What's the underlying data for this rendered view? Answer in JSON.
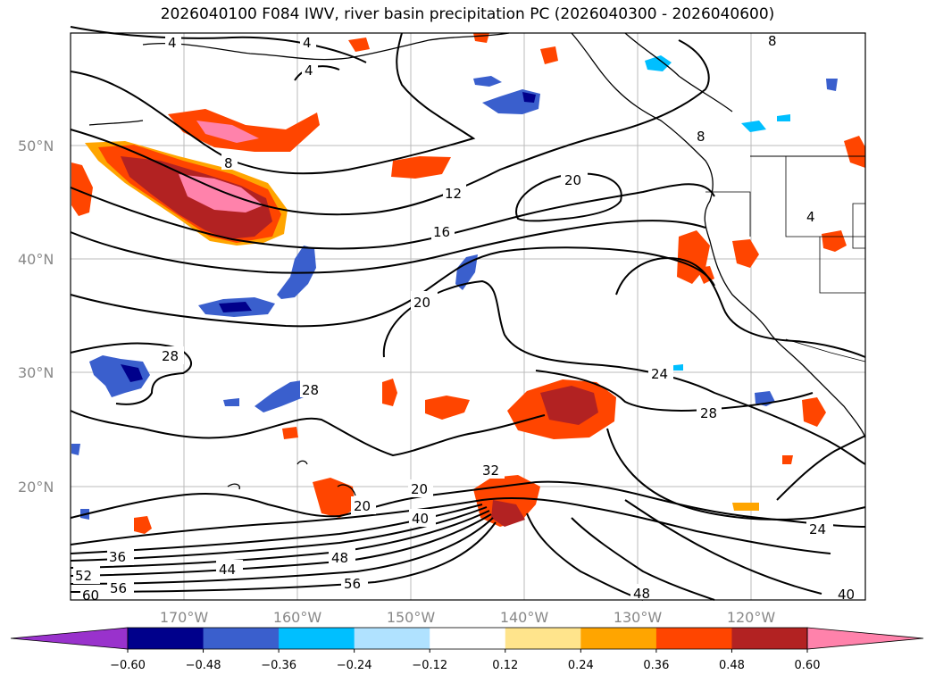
{
  "title": "2026040100 F084 IWV, river basin precipitation PC (2026040300 - 2026040600)",
  "map": {
    "lat_ticks": [
      "50°N",
      "40°N",
      "30°N",
      "20°N"
    ],
    "lon_ticks": [
      "170°W",
      "160°W",
      "150°W",
      "140°W",
      "130°W",
      "120°W"
    ],
    "iwv_contour_labels": [
      {
        "text": "4"
      },
      {
        "text": "4"
      },
      {
        "text": "8"
      },
      {
        "text": "4"
      },
      {
        "text": "8"
      },
      {
        "text": "12"
      },
      {
        "text": "16"
      },
      {
        "text": "20"
      },
      {
        "text": "20"
      },
      {
        "text": "28"
      },
      {
        "text": "28"
      },
      {
        "text": "24"
      },
      {
        "text": "28"
      },
      {
        "text": "20"
      },
      {
        "text": "20"
      },
      {
        "text": "32"
      },
      {
        "text": "36"
      },
      {
        "text": "40"
      },
      {
        "text": "44"
      },
      {
        "text": "48"
      },
      {
        "text": "52"
      },
      {
        "text": "56"
      },
      {
        "text": "56"
      },
      {
        "text": "60"
      },
      {
        "text": "48"
      },
      {
        "text": "40"
      },
      {
        "text": "24"
      },
      {
        "text": "8"
      },
      {
        "text": "4"
      }
    ]
  },
  "colorbar": {
    "levels": [
      "−0.60",
      "−0.48",
      "−0.36",
      "−0.24",
      "−0.12",
      "0.12",
      "0.24",
      "0.36",
      "0.48",
      "0.60"
    ],
    "colors": [
      "#9932cc",
      "#00008b",
      "#3a5fcd",
      "#00bfff",
      "#b0e2ff",
      "#ffffff",
      "#ffe48c",
      "#ffa500",
      "#ff4500",
      "#b22222",
      "#ff82ab"
    ]
  }
}
